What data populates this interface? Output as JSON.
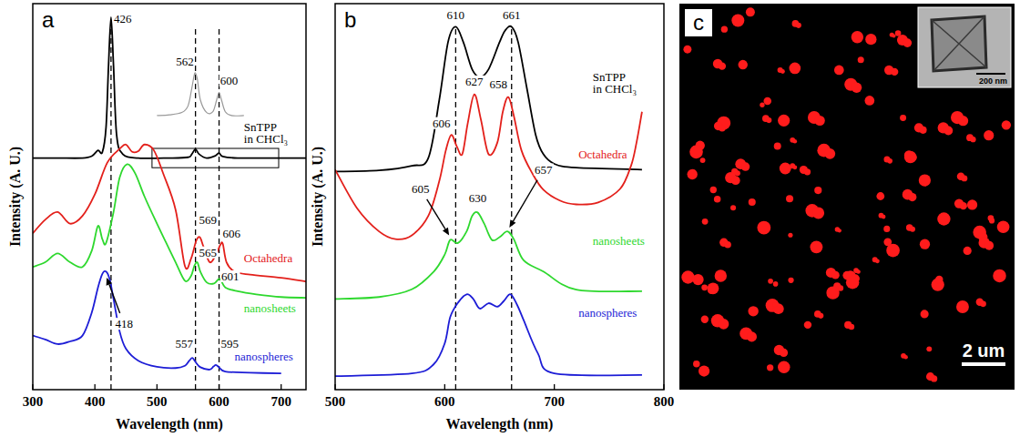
{
  "chart_data": [
    {
      "type": "line",
      "label": "a",
      "x_label": "Wavelength (nm)",
      "y_label": "Intensity (A. U.)",
      "xlim": [
        300,
        740
      ],
      "xticks": [
        300,
        400,
        500,
        600,
        700
      ],
      "ylim": [
        0,
        100
      ],
      "tick_labels": "x",
      "vlines": [
        426,
        562,
        600
      ],
      "zoom_box": [
        492,
        696,
        57.5,
        62.5
      ],
      "series": [
        {
          "name": "SnTPP in CHCl₃",
          "color": "#000000",
          "label_pos": [
            640,
            67
          ],
          "x": [
            300,
            340,
            380,
            395,
            405,
            412,
            418,
            422,
            426,
            430,
            435,
            445,
            470,
            520,
            550,
            556,
            562,
            568,
            580,
            594,
            600,
            606,
            630,
            700,
            740
          ],
          "values": [
            60,
            60,
            60,
            60.5,
            62,
            61.5,
            68,
            84,
            96.5,
            84,
            66,
            61,
            60,
            60,
            60.2,
            61,
            62.3,
            61,
            60,
            60.6,
            61.3,
            60.4,
            60,
            60,
            60
          ]
        },
        {
          "color": "#9a9a9a",
          "x": [
            500,
            520,
            540,
            550,
            556,
            560,
            562,
            565,
            570,
            580,
            590,
            596,
            600,
            604,
            610,
            620,
            640
          ],
          "values": [
            71,
            71.2,
            71.8,
            73.5,
            78,
            81.5,
            82,
            80.5,
            75,
            71.8,
            72,
            75,
            77,
            75,
            72,
            71,
            71
          ]
        },
        {
          "name": "Octahedra",
          "color": "#e3201b",
          "label_pos": [
            640,
            33
          ],
          "x": [
            300,
            320,
            340,
            360,
            380,
            400,
            420,
            440,
            450,
            460,
            470,
            480,
            495,
            510,
            530,
            545,
            555,
            563,
            569,
            575,
            585,
            595,
            602,
            606,
            612,
            625,
            650,
            700,
            740
          ],
          "values": [
            40.5,
            44,
            46,
            43,
            45,
            50.6,
            58.8,
            62.4,
            63.5,
            61.6,
            61.8,
            63.5,
            62,
            56,
            46.6,
            32,
            34,
            38.5,
            39.5,
            37,
            33,
            35,
            37.5,
            37.8,
            33,
            30.6,
            29.8,
            29,
            28
          ]
        },
        {
          "name": "nanosheets",
          "color": "#2ed82e",
          "label_pos": [
            640,
            20
          ],
          "x": [
            300,
            320,
            340,
            360,
            380,
            395,
            405,
            412,
            418,
            430,
            440,
            452,
            465,
            480,
            500,
            515,
            530,
            545,
            555,
            560,
            565,
            570,
            580,
            592,
            601,
            610,
            630,
            660,
            700,
            740
          ],
          "values": [
            31.8,
            33,
            35.3,
            33,
            31.8,
            36,
            42.4,
            39,
            38,
            46,
            55,
            58.4,
            56,
            50,
            43,
            38,
            33,
            28.2,
            29.5,
            32,
            33,
            30.5,
            27.8,
            27.5,
            28.7,
            26.5,
            25.5,
            24.7,
            24,
            23.8
          ]
        },
        {
          "name": "nanospheres",
          "color": "#1d1dd6",
          "label_pos": [
            625,
            7.5
          ],
          "x": [
            300,
            320,
            340,
            360,
            380,
            395,
            405,
            412,
            418,
            424,
            430,
            440,
            450,
            470,
            500,
            530,
            545,
            552,
            557,
            562,
            570,
            585,
            591,
            595,
            600,
            610,
            650,
            700
          ],
          "values": [
            14,
            13,
            11.8,
            12.5,
            14,
            20,
            26.5,
            30,
            30.6,
            28.5,
            23.5,
            15,
            10.6,
            7.5,
            5.9,
            5.6,
            6.2,
            7.5,
            8.2,
            7.2,
            5.8,
            5.2,
            6,
            6.4,
            5.8,
            4.7,
            4.4,
            4.2
          ]
        }
      ],
      "annotations": [
        {
          "text": "426",
          "x": 445,
          "y": 95
        },
        {
          "text": "562",
          "x": 545,
          "y": 84
        },
        {
          "text": "600",
          "x": 616,
          "y": 79
        },
        {
          "text": "569",
          "x": 582,
          "y": 43
        },
        {
          "text": "606",
          "x": 620,
          "y": 39.5
        },
        {
          "text": "565",
          "x": 582,
          "y": 34.5
        },
        {
          "text": "601",
          "x": 618,
          "y": 28.3
        },
        {
          "text": "418",
          "x": 447,
          "y": 16,
          "arrow_to": [
            419,
            29
          ]
        },
        {
          "text": "557",
          "x": 544,
          "y": 10.8
        },
        {
          "text": "595",
          "x": 617,
          "y": 10.8
        }
      ]
    },
    {
      "type": "line",
      "label": "b",
      "x_label": "Wavelength (nm)",
      "y_label": "Intensity (A. U.)",
      "xlim": [
        500,
        800
      ],
      "xticks": [
        500,
        600,
        700,
        800
      ],
      "ylim": [
        0,
        100
      ],
      "tick_labels": "x",
      "vlines": [
        610,
        661
      ],
      "series": [
        {
          "name": "SnTPP in CHCl₃",
          "color": "#000000",
          "label_pos": [
            735,
            80
          ],
          "x": [
            500,
            540,
            570,
            585,
            595,
            603,
            610,
            617,
            625,
            632,
            640,
            650,
            655,
            661,
            667,
            675,
            683,
            690,
            700,
            720,
            780
          ],
          "values": [
            56.5,
            56.8,
            58,
            60,
            75,
            90,
            94,
            90,
            83,
            81,
            83,
            90,
            93,
            94,
            90,
            78,
            66,
            61,
            58.5,
            57.5,
            57
          ]
        },
        {
          "name": "Octahedra",
          "color": "#e3201b",
          "label_pos": [
            722,
            60
          ],
          "x": [
            500,
            520,
            540,
            555,
            570,
            585,
            595,
            601,
            606,
            611,
            616,
            621,
            627,
            633,
            640,
            648,
            653,
            658,
            663,
            670,
            680,
            690,
            705,
            720,
            740,
            760,
            770,
            775,
            780
          ],
          "values": [
            57,
            47,
            41,
            39,
            40,
            45,
            54,
            62,
            66,
            63,
            61,
            69,
            76.5,
            70,
            61,
            64,
            72,
            75.8,
            71,
            62,
            56,
            51.8,
            49,
            48,
            48.5,
            52,
            58,
            64,
            72
          ]
        },
        {
          "name": "nanosheets",
          "color": "#2ed82e",
          "label_pos": [
            735,
            37.6
          ],
          "x": [
            500,
            540,
            570,
            590,
            600,
            605,
            612,
            620,
            625,
            630,
            636,
            643,
            650,
            657,
            663,
            672,
            690,
            720,
            780
          ],
          "values": [
            23.5,
            24,
            26,
            30.6,
            35,
            38.8,
            38,
            41,
            45,
            45.9,
            43,
            38.8,
            39.5,
            41,
            39,
            33.5,
            30.6,
            25.9,
            25.5
          ]
        },
        {
          "name": "nanospheres",
          "color": "#1d1dd6",
          "label_pos": [
            722,
            18.8
          ],
          "x": [
            500,
            570,
            590,
            600,
            605,
            612,
            620,
            626,
            632,
            640,
            648,
            654,
            660,
            666,
            672,
            685,
            700,
            780
          ],
          "values": [
            3.5,
            4.2,
            6.6,
            12,
            18.8,
            22.5,
            24.7,
            23.5,
            21,
            22.4,
            21.5,
            23,
            24.7,
            22,
            18,
            9.4,
            4.2,
            3.8
          ]
        }
      ],
      "annotations": [
        {
          "text": "610",
          "x": 610,
          "y": 96
        },
        {
          "text": "661",
          "x": 661,
          "y": 96
        },
        {
          "text": "606",
          "x": 597,
          "y": 68
        },
        {
          "text": "627",
          "x": 627,
          "y": 78.8
        },
        {
          "text": "658",
          "x": 649,
          "y": 78
        },
        {
          "text": "630",
          "x": 630,
          "y": 48.5
        },
        {
          "text": "605",
          "x": 578,
          "y": 51,
          "arrow_to": [
            604,
            40
          ]
        },
        {
          "text": "657",
          "x": 690,
          "y": 56,
          "arrow_to": [
            659,
            42
          ]
        }
      ]
    },
    {
      "type": "image",
      "label": "c",
      "scale_bar": "2 um",
      "inset_scale_bar": "200 nm"
    }
  ]
}
